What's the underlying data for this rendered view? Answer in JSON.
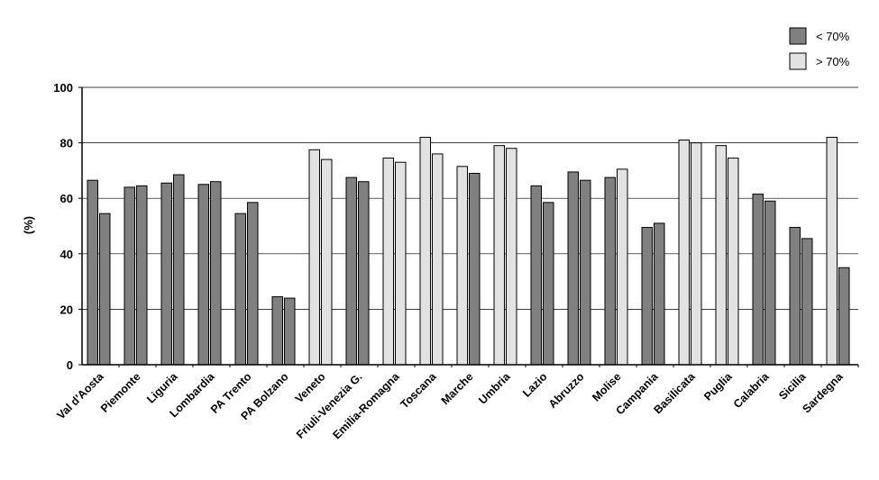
{
  "chart_data": {
    "type": "bar",
    "ylabel": "(%)",
    "ylim": [
      0,
      100
    ],
    "yticks": [
      0,
      20,
      40,
      60,
      80,
      100
    ],
    "grid": true,
    "legend_position": "top-right",
    "legend": [
      {
        "label": "< 70%",
        "color": "#808080"
      },
      {
        "label": "> 70%",
        "color": "#e2e2e2"
      }
    ],
    "categories": [
      "Val d'Aosta",
      "Piemonte",
      "Liguria",
      "Lombardia",
      "PA Trento",
      "PA Bolzano",
      "Veneto",
      "Friuli-Venezia G.",
      "Emilia-Romagna",
      "Toscana",
      "Marche",
      "Umbria",
      "Lazio",
      "Abruzzo",
      "Molise",
      "Campania",
      "Basilicata",
      "Puglia",
      "Calabria",
      "Sicilia",
      "Sardegna"
    ],
    "bars": [
      [
        {
          "v": 66.5,
          "g": "lt"
        },
        {
          "v": 54.5,
          "g": "lt"
        }
      ],
      [
        {
          "v": 64,
          "g": "lt"
        },
        {
          "v": 64.5,
          "g": "lt"
        }
      ],
      [
        {
          "v": 65.5,
          "g": "lt"
        },
        {
          "v": 68.5,
          "g": "lt"
        }
      ],
      [
        {
          "v": 65,
          "g": "lt"
        },
        {
          "v": 66,
          "g": "lt"
        }
      ],
      [
        {
          "v": 54.5,
          "g": "lt"
        },
        {
          "v": 58.5,
          "g": "lt"
        }
      ],
      [
        {
          "v": 24.5,
          "g": "lt"
        },
        {
          "v": 24,
          "g": "lt"
        }
      ],
      [
        {
          "v": 77.5,
          "g": "gt"
        },
        {
          "v": 74,
          "g": "gt"
        }
      ],
      [
        {
          "v": 67.5,
          "g": "lt"
        },
        {
          "v": 66,
          "g": "lt"
        }
      ],
      [
        {
          "v": 74.5,
          "g": "gt"
        },
        {
          "v": 73,
          "g": "gt"
        }
      ],
      [
        {
          "v": 82,
          "g": "gt"
        },
        {
          "v": 76,
          "g": "gt"
        }
      ],
      [
        {
          "v": 71.5,
          "g": "gt"
        },
        {
          "v": 69,
          "g": "lt"
        }
      ],
      [
        {
          "v": 79,
          "g": "gt"
        },
        {
          "v": 78,
          "g": "gt"
        }
      ],
      [
        {
          "v": 64.5,
          "g": "lt"
        },
        {
          "v": 58.5,
          "g": "lt"
        }
      ],
      [
        {
          "v": 69.5,
          "g": "lt"
        },
        {
          "v": 66.5,
          "g": "lt"
        }
      ],
      [
        {
          "v": 67.5,
          "g": "lt"
        },
        {
          "v": 70.5,
          "g": "gt"
        }
      ],
      [
        {
          "v": 49.5,
          "g": "lt"
        },
        {
          "v": 51,
          "g": "lt"
        }
      ],
      [
        {
          "v": 81,
          "g": "gt"
        },
        {
          "v": 80,
          "g": "gt"
        }
      ],
      [
        {
          "v": 79,
          "g": "gt"
        },
        {
          "v": 74.5,
          "g": "gt"
        }
      ],
      [
        {
          "v": 61.5,
          "g": "lt"
        },
        {
          "v": 59,
          "g": "lt"
        }
      ],
      [
        {
          "v": 49.5,
          "g": "lt"
        },
        {
          "v": 45.5,
          "g": "lt"
        }
      ],
      [
        {
          "v": 82,
          "g": "gt"
        },
        {
          "v": 35,
          "g": "lt"
        }
      ]
    ]
  }
}
